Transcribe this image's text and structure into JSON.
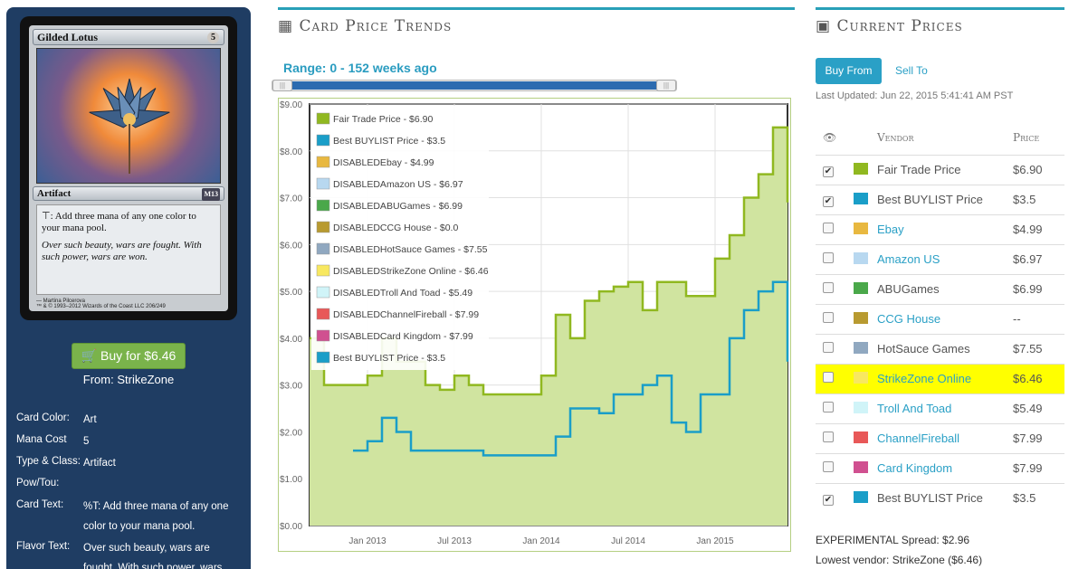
{
  "card": {
    "name": "Gilded Lotus",
    "cost": "5",
    "type_line": "Artifact",
    "set_symbol": "M13",
    "rules_text": "⊤: Add three mana of any one color to your mana pool.",
    "flavor_text": "Over such beauty, wars are fought. With such power, wars are won.",
    "artist": "— Martina Pilcerova",
    "footer": "™ & © 1993–2012 Wizards of the Coast LLC 206/249"
  },
  "buy": {
    "label": "Buy for $6.46",
    "from": "From: StrikeZone",
    "color": "#7ab34b"
  },
  "attributes": [
    {
      "label": "Card Color:",
      "value": "Art"
    },
    {
      "label": "Mana Cost",
      "value": "5"
    },
    {
      "label": "Type & Class:",
      "value": "Artifact"
    },
    {
      "label": "Pow/Tou:",
      "value": ""
    },
    {
      "label": "Card Text:",
      "value": "%T: Add three mana of any one color to your mana pool."
    },
    {
      "label": "Flavor Text:",
      "value": "Over such beauty, wars are fought. With such power, wars"
    }
  ],
  "trends": {
    "title": "Card Price Trends",
    "range_label": "Range: 0 - 152 weeks ago",
    "icon": "calendar-icon"
  },
  "chart_data": {
    "type": "area",
    "ylim": [
      0,
      9
    ],
    "y_ticks": [
      "$0.00",
      "$1.00",
      "$2.00",
      "$3.00",
      "$4.00",
      "$5.00",
      "$6.00",
      "$7.00",
      "$8.00",
      "$9.00"
    ],
    "x_ticks": [
      "Jan 2013",
      "Jul 2013",
      "Jan 2014",
      "Jul 2014",
      "Jan 2015"
    ],
    "xlim": [
      "2012-09",
      "2015-06"
    ],
    "legend": [
      {
        "label": "Fair Trade Price - $6.90",
        "color": "#90b820"
      },
      {
        "label": "Best BUYLIST Price - $3.5",
        "color": "#1a9ec8"
      },
      {
        "label": "DISABLEDEbay - $4.99",
        "color": "#e8b840"
      },
      {
        "label": "DISABLEDAmazon US - $6.97",
        "color": "#b8d8f0"
      },
      {
        "label": "DISABLEDABUGames - $6.99",
        "color": "#4aa84a"
      },
      {
        "label": "DISABLEDCCG House - $0.0",
        "color": "#b89a30"
      },
      {
        "label": "DISABLEDHotSauce Games - $7.55",
        "color": "#90a8c0"
      },
      {
        "label": "DISABLEDStrikeZone Online - $6.46",
        "color": "#f8e860"
      },
      {
        "label": "DISABLEDTroll And Toad - $5.49",
        "color": "#d0f4f8"
      },
      {
        "label": "DISABLEDChannelFireball - $7.99",
        "color": "#e85858"
      },
      {
        "label": "DISABLEDCard Kingdom - $7.99",
        "color": "#d05090"
      },
      {
        "label": "Best BUYLIST Price - $3.5",
        "color": "#1a9ec8"
      }
    ],
    "series": [
      {
        "name": "Fair Trade Price",
        "color": "#90b820",
        "x": [
          "2012-09",
          "2012-10",
          "2012-11",
          "2012-12",
          "2013-01",
          "2013-02",
          "2013-03",
          "2013-04",
          "2013-05",
          "2013-06",
          "2013-07",
          "2013-08",
          "2013-09",
          "2013-10",
          "2013-11",
          "2013-12",
          "2014-01",
          "2014-02",
          "2014-03",
          "2014-04",
          "2014-05",
          "2014-06",
          "2014-07",
          "2014-08",
          "2014-09",
          "2014-10",
          "2014-11",
          "2014-12",
          "2015-01",
          "2015-02",
          "2015-03",
          "2015-04",
          "2015-05",
          "2015-06"
        ],
        "values": [
          4.0,
          3.0,
          3.0,
          3.0,
          3.2,
          4.0,
          3.5,
          3.5,
          3.0,
          2.9,
          3.2,
          3.0,
          2.8,
          2.8,
          2.8,
          2.8,
          3.2,
          4.5,
          4.0,
          4.8,
          5.0,
          5.1,
          5.2,
          4.6,
          5.2,
          5.2,
          4.9,
          4.9,
          5.7,
          6.2,
          7.0,
          7.5,
          8.5,
          6.9
        ]
      },
      {
        "name": "Best BUYLIST Price",
        "color": "#1a9ec8",
        "x": [
          "2012-12",
          "2013-01",
          "2013-02",
          "2013-03",
          "2013-04",
          "2013-05",
          "2013-06",
          "2013-07",
          "2013-08",
          "2013-09",
          "2013-10",
          "2013-11",
          "2013-12",
          "2014-01",
          "2014-02",
          "2014-03",
          "2014-04",
          "2014-05",
          "2014-06",
          "2014-07",
          "2014-08",
          "2014-09",
          "2014-10",
          "2014-11",
          "2014-12",
          "2015-01",
          "2015-02",
          "2015-03",
          "2015-04",
          "2015-05",
          "2015-06"
        ],
        "values": [
          1.6,
          1.8,
          2.3,
          2.0,
          1.6,
          1.6,
          1.6,
          1.6,
          1.6,
          1.5,
          1.5,
          1.5,
          1.5,
          1.5,
          1.9,
          2.5,
          2.5,
          2.4,
          2.8,
          2.8,
          3.0,
          3.2,
          2.2,
          2.0,
          2.8,
          2.8,
          4.0,
          4.6,
          5.0,
          5.2,
          3.5
        ]
      }
    ]
  },
  "current": {
    "title": "Current Prices",
    "icon": "money-icon",
    "buy_from": "Buy From",
    "sell_to": "Sell To",
    "last_updated": "Last Updated: Jun 22, 2015 5:41:41 AM PST",
    "col_vendor": "Vendor",
    "col_price": "Price",
    "rows": [
      {
        "checked": true,
        "color": "#90b820",
        "vendor": "Fair Trade Price",
        "link": false,
        "price": "$6.90"
      },
      {
        "checked": true,
        "color": "#1a9ec8",
        "vendor": "Best BUYLIST Price",
        "link": false,
        "price": "$3.5"
      },
      {
        "checked": false,
        "color": "#e8b840",
        "vendor": "Ebay",
        "link": true,
        "price": "$4.99"
      },
      {
        "checked": false,
        "color": "#b8d8f0",
        "vendor": "Amazon US",
        "link": true,
        "price": "$6.97"
      },
      {
        "checked": false,
        "color": "#4aa84a",
        "vendor": "ABUGames",
        "link": false,
        "price": "$6.99"
      },
      {
        "checked": false,
        "color": "#b89a30",
        "vendor": "CCG House",
        "link": true,
        "price": "--"
      },
      {
        "checked": false,
        "color": "#90a8c0",
        "vendor": "HotSauce Games",
        "link": false,
        "price": "$7.55"
      },
      {
        "checked": false,
        "color": "#f8e860",
        "vendor": "StrikeZone Online",
        "link": true,
        "price": "$6.46",
        "highlight": true
      },
      {
        "checked": false,
        "color": "#d0f4f8",
        "vendor": "Troll And Toad",
        "link": true,
        "price": "$5.49"
      },
      {
        "checked": false,
        "color": "#e85858",
        "vendor": "ChannelFireball",
        "link": true,
        "price": "$7.99"
      },
      {
        "checked": false,
        "color": "#d05090",
        "vendor": "Card Kingdom",
        "link": true,
        "price": "$7.99"
      },
      {
        "checked": true,
        "color": "#1a9ec8",
        "vendor": "Best BUYLIST Price",
        "link": false,
        "price": "$3.5"
      }
    ],
    "spread": "EXPERIMENTAL Spread: $2.96",
    "lowest": "Lowest vendor: StrikeZone ($6.46)"
  }
}
